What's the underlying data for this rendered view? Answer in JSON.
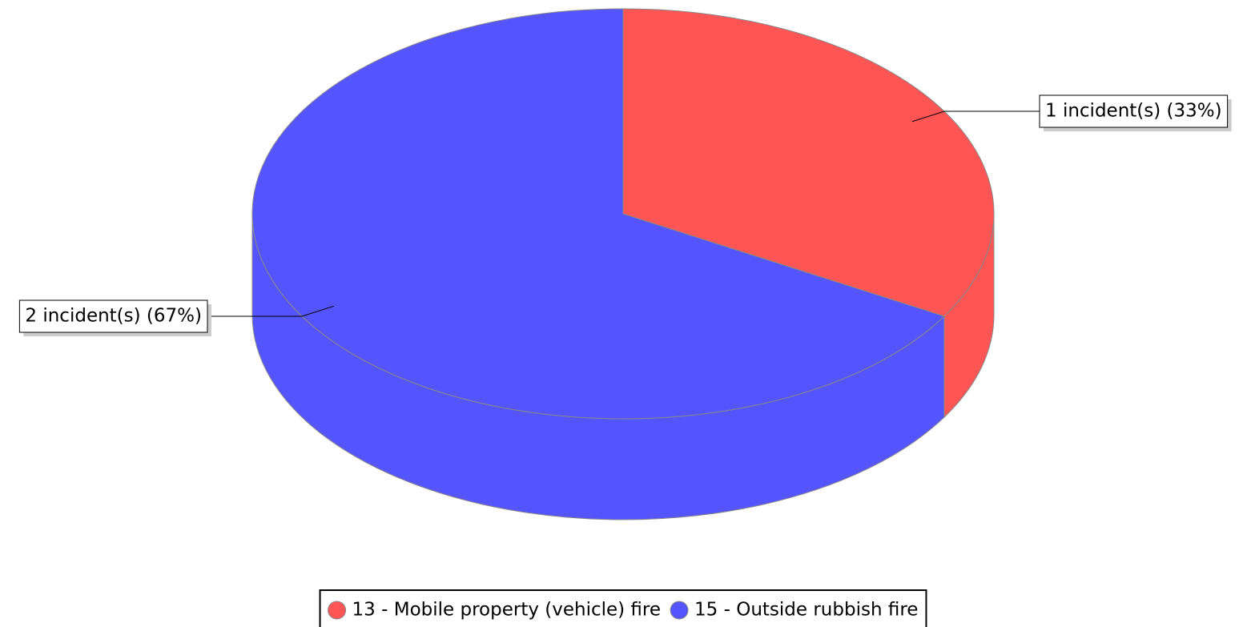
{
  "chart_data": {
    "type": "pie",
    "series": [
      {
        "name": "13 - Mobile property (vehicle) fire",
        "color": "#ff5555"
      },
      {
        "name": "15 - Outside rubbish fire",
        "color": "#5555ff"
      }
    ],
    "values": [
      1,
      2
    ],
    "value_labels": [
      "1 incident(s) (33%)",
      "2 incident(s) (67%)"
    ],
    "legend": "bottom"
  }
}
